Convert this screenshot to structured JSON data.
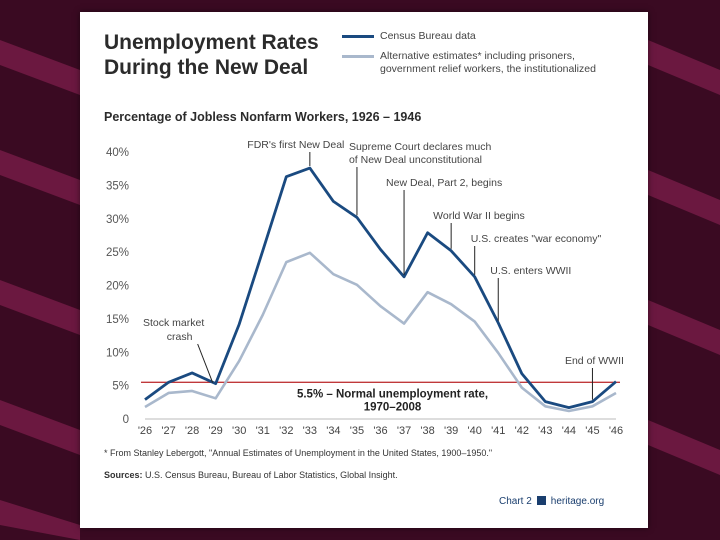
{
  "chart_data": {
    "type": "line",
    "title": "Unemployment Rates During the New Deal",
    "subtitle": "Percentage of Jobless Nonfarm Workers, 1926 – 1946",
    "categories": [
      "'26",
      "'27",
      "'28",
      "'29",
      "'30",
      "'31",
      "'32",
      "'33",
      "'34",
      "'35",
      "'36",
      "'37",
      "'38",
      "'39",
      "'40",
      "'41",
      "'42",
      "'43",
      "'44",
      "'45",
      "'46"
    ],
    "series": [
      {
        "name": "Census Bureau data",
        "color": "#1a4a80",
        "values": [
          2.9,
          5.5,
          6.9,
          5.3,
          14.2,
          25.2,
          36.3,
          37.6,
          32.6,
          30.2,
          25.4,
          21.3,
          27.9,
          25.2,
          21.3,
          14.4,
          6.8,
          2.6,
          1.7,
          2.6,
          5.6
        ]
      },
      {
        "name": "Alternative estimates* including prisoners, government relief workers, the institutionalized",
        "color": "#a9b8cc",
        "values": [
          1.8,
          3.9,
          4.2,
          3.1,
          8.7,
          15.6,
          23.5,
          24.9,
          21.7,
          20.1,
          16.9,
          14.3,
          19.0,
          17.2,
          14.6,
          9.9,
          4.7,
          1.9,
          1.2,
          1.9,
          3.9
        ]
      }
    ],
    "ylim": [
      0,
      40
    ],
    "yticks": [
      "0",
      "5%",
      "10%",
      "15%",
      "20%",
      "25%",
      "30%",
      "35%",
      "40%"
    ],
    "ytick_values": [
      0,
      5,
      10,
      15,
      20,
      25,
      30,
      35,
      40
    ],
    "reference_line": {
      "value": 5.5,
      "label_line1": "5.5% – Normal unemployment rate,",
      "label_line2": "1970–2008",
      "color": "#c0393b"
    },
    "annotations": [
      {
        "lines": [
          "FDR's first New Deal"
        ],
        "x_index": 7
      },
      {
        "lines": [
          "Supreme Court declares much",
          "of New Deal unconstitutional"
        ],
        "x_index": 9
      },
      {
        "lines": [
          "New Deal, Part 2, begins"
        ],
        "x_index": 11
      },
      {
        "lines": [
          "World War II begins"
        ],
        "x_index": 13
      },
      {
        "lines": [
          "U.S. creates \"war economy\""
        ],
        "x_index": 14
      },
      {
        "lines": [
          "U.S. enters WWII"
        ],
        "x_index": 15
      },
      {
        "lines": [
          "End of WWII"
        ],
        "x_index": 19
      },
      {
        "lines": [
          "Stock market",
          "crash"
        ],
        "x_index": 3
      }
    ]
  },
  "legend": {
    "census_label": "Census Bureau data",
    "alt_label_line1": "Alternative estimates* including prisoners,",
    "alt_label_line2": "government relief workers, the institutionalized"
  },
  "title_line1": "Unemployment Rates",
  "title_line2": "During the New Deal",
  "footnote": "* From Stanley Lebergott, \"Annual Estimates of Unemployment in the United States, 1900–1950.\"",
  "sources_label": "Sources:",
  "sources_text": "U.S. Census Bureau, Bureau of Labor Statistics, Global Insight.",
  "brand": {
    "chart_label": "Chart 2",
    "site": "heritage.org"
  },
  "colors": {
    "census": "#1a4a80",
    "alternative": "#a9b8cc",
    "reference": "#c0393b",
    "background": "#3a0a22",
    "stripe": "#6b1840"
  }
}
